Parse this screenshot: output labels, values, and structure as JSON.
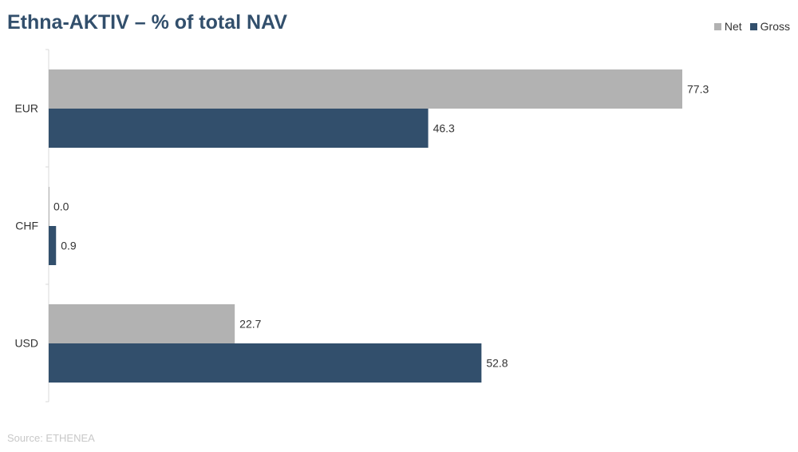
{
  "colors": {
    "title": "#324f6c",
    "net": "#b2b2b2",
    "gross": "#324f6c",
    "axis": "#d9d9d9",
    "text": "#333333",
    "source": "#c8c8c8"
  },
  "chart_data": {
    "type": "bar",
    "orientation": "horizontal",
    "title": "Ethna-AKTIV – % of total NAV",
    "categories": [
      "EUR",
      "CHF",
      "USD"
    ],
    "series": [
      {
        "name": "Net",
        "values": [
          77.3,
          0.0,
          22.7
        ],
        "labels": [
          "77.3",
          "0.0",
          "22.7"
        ]
      },
      {
        "name": "Gross",
        "values": [
          46.3,
          0.9,
          52.8
        ],
        "labels": [
          "46.3",
          "0.9",
          "52.8"
        ]
      }
    ],
    "xlim": [
      0,
      90
    ],
    "legend_position": "top-right",
    "grid": false,
    "source": "Source: ETHENEA"
  }
}
